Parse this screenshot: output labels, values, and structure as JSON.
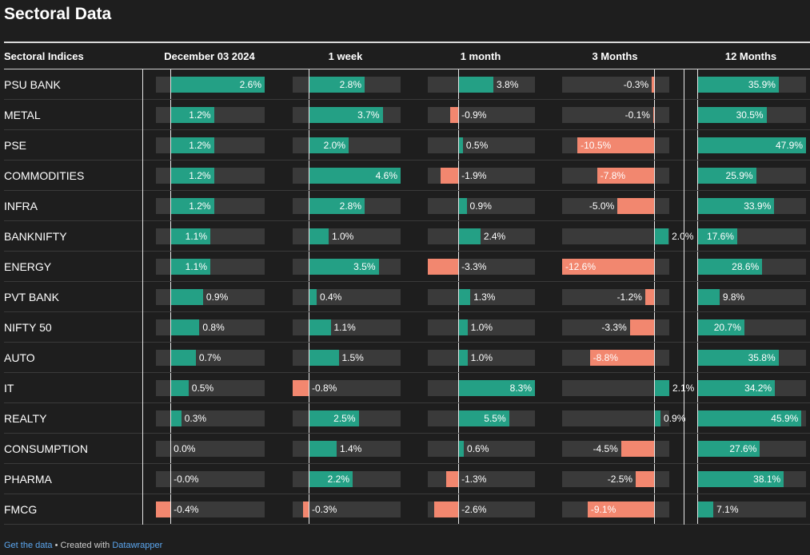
{
  "title": "Sectoral Data",
  "footer": {
    "get_data": "Get the data",
    "separator": " • Created with ",
    "tool": "Datawrapper"
  },
  "colors": {
    "positive": "#24a085",
    "negative": "#f2876f",
    "track": "#3a3a3a",
    "background": "#1e1e1e"
  },
  "chart_data": {
    "type": "bar",
    "row_header": "Sectoral Indices",
    "categories": [
      "PSU BANK",
      "METAL",
      "PSE",
      "COMMODITIES",
      "INFRA",
      "BANKNIFTY",
      "ENERGY",
      "PVT BANK",
      "NIFTY 50",
      "AUTO",
      "IT",
      "REALTY",
      "CONSUMPTION",
      "PHARMA",
      "FMCG"
    ],
    "series": [
      {
        "name": "December 03 2024",
        "values": [
          2.6,
          1.2,
          1.2,
          1.2,
          1.2,
          1.1,
          1.1,
          0.9,
          0.8,
          0.7,
          0.5,
          0.3,
          0.0,
          -0.0,
          -0.4
        ],
        "labels": [
          "2.6%",
          "1.2%",
          "1.2%",
          "1.2%",
          "1.2%",
          "1.1%",
          "1.1%",
          "0.9%",
          "0.8%",
          "0.7%",
          "0.5%",
          "0.3%",
          "0.0%",
          "-0.0%",
          "-0.4%"
        ]
      },
      {
        "name": "1 week",
        "values": [
          2.8,
          3.7,
          2.0,
          4.6,
          2.8,
          1.0,
          3.5,
          0.4,
          1.1,
          1.5,
          -0.8,
          2.5,
          1.4,
          2.2,
          -0.3
        ],
        "labels": [
          "2.8%",
          "3.7%",
          "2.0%",
          "4.6%",
          "2.8%",
          "1.0%",
          "3.5%",
          "0.4%",
          "1.1%",
          "1.5%",
          "-0.8%",
          "2.5%",
          "1.4%",
          "2.2%",
          "-0.3%"
        ]
      },
      {
        "name": "1 month",
        "values": [
          3.8,
          -0.9,
          0.5,
          -1.9,
          0.9,
          2.4,
          -3.3,
          1.3,
          1.0,
          1.0,
          8.3,
          5.5,
          0.6,
          -1.3,
          -2.6
        ],
        "labels": [
          "3.8%",
          "-0.9%",
          "0.5%",
          "-1.9%",
          "0.9%",
          "2.4%",
          "-3.3%",
          "1.3%",
          "1.0%",
          "1.0%",
          "8.3%",
          "5.5%",
          "0.6%",
          "-1.3%",
          "-2.6%"
        ]
      },
      {
        "name": "3 Months",
        "values": [
          -0.3,
          -0.1,
          -10.5,
          -7.8,
          -5.0,
          2.0,
          -12.6,
          -1.2,
          -3.3,
          -8.8,
          2.1,
          0.9,
          -4.5,
          -2.5,
          -9.1
        ],
        "labels": [
          "-0.3%",
          "-0.1%",
          "-10.5%",
          "-7.8%",
          "-5.0%",
          "2.0%",
          "-12.6%",
          "-1.2%",
          "-3.3%",
          "-8.8%",
          "2.1%",
          "0.9%",
          "-4.5%",
          "-2.5%",
          "-9.1%"
        ]
      },
      {
        "name": "12 Months",
        "values": [
          35.9,
          30.5,
          47.9,
          25.9,
          33.9,
          17.6,
          28.6,
          9.8,
          20.7,
          35.8,
          34.2,
          45.9,
          27.6,
          38.1,
          7.1
        ],
        "labels": [
          "35.9%",
          "30.5%",
          "47.9%",
          "25.9%",
          "33.9%",
          "17.6%",
          "28.6%",
          "9.8%",
          "20.7%",
          "35.8%",
          "34.2%",
          "45.9%",
          "27.6%",
          "38.1%",
          "7.1%"
        ]
      }
    ],
    "xlim": [
      [
        -0.4,
        2.6
      ],
      [
        -0.8,
        4.6
      ],
      [
        -3.3,
        8.3
      ],
      [
        -12.6,
        2.1
      ],
      [
        0,
        47.9
      ]
    ]
  }
}
